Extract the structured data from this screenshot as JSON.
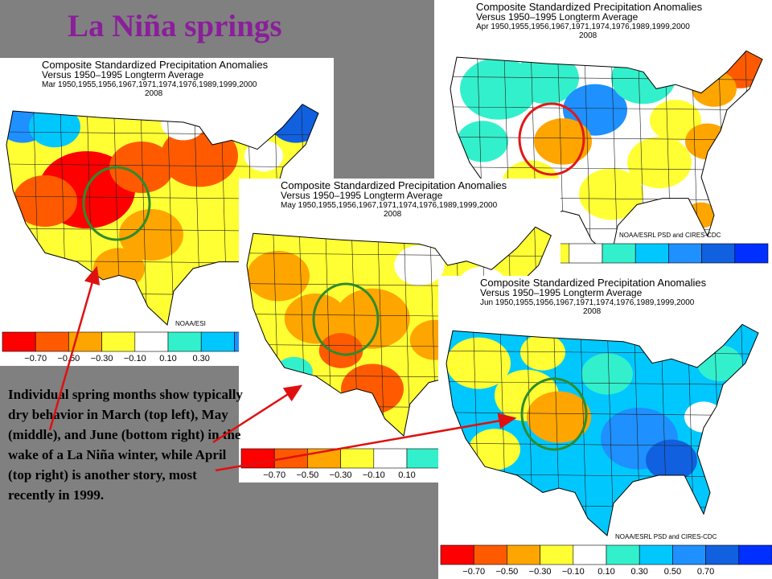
{
  "title": "La Niña springs",
  "caption": "Individual spring months show typically dry behavior in March (top left), May (middle), and June (bottom right) in the wake of a La Niña winter, while April (top right) is another story, most recently in 1999.",
  "panels": [
    {
      "header": [
        "Composite Standardized Precipitation Anomalies",
        "Versus 1950–1995 Longterm Average",
        "Apr 1950,1955,1956,1967,1971,1974,1976,1989,1999,2000",
        "2008"
      ],
      "credit": "NOAA/ESRL PSD and CIRES-CDC"
    },
    {
      "header": [
        "Composite Standardized Precipitation Anomalies",
        "Versus 1950–1995 Longterm Average",
        "Mar 1950,1955,1956,1967,1971,1974,1976,1989,1999,2000",
        "2008"
      ],
      "credit": "NOAA/ESI",
      "colorbar": [
        "−0.70",
        "−0.50",
        "−0.30",
        "−0.10",
        "0.10",
        "0.30"
      ]
    },
    {
      "header": [
        "Composite Standardized Precipitation Anomalies",
        "Versus 1950–1995 Longterm Average",
        "May 1950,1955,1956,1967,1971,1974,1976,1989,1999,2000",
        "2008"
      ],
      "colorbar": [
        "−0.70",
        "−0.50",
        "−0.30",
        "−0.10",
        "0.10"
      ]
    },
    {
      "header": [
        "Composite Standardized Precipitation Anomalies",
        "Versus 1950–1995 Longterm Average",
        "Jun 1950,1955,1956,1967,1971,1974,1976,1989,1999,2000",
        "2008"
      ],
      "credit": "NOAA/ESRL PSD and CIRES-CDC",
      "colorbar": [
        "−0.70",
        "−0.50",
        "−0.30",
        "−0.10",
        "0.10",
        "0.30",
        "0.50",
        "0.70"
      ]
    }
  ]
}
